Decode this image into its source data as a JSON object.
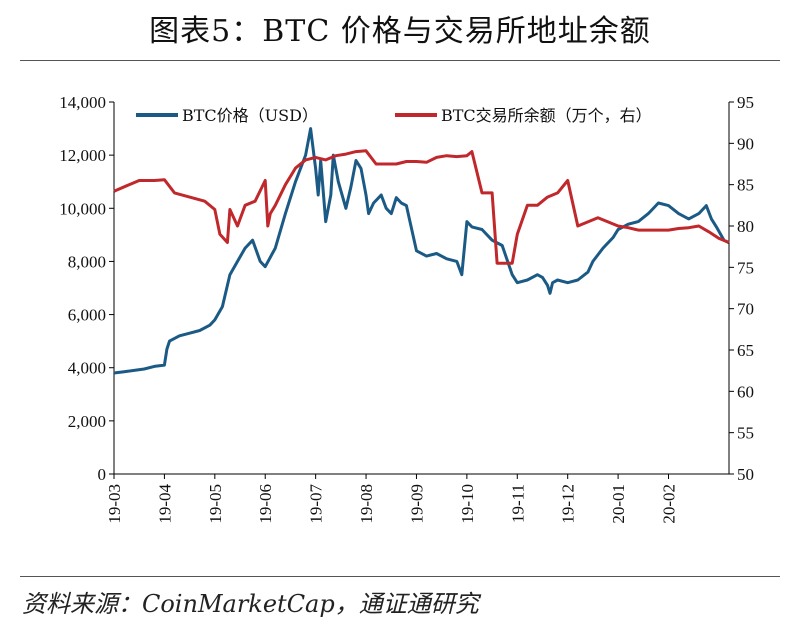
{
  "title": "图表5：BTC 价格与交易所地址余额",
  "source": "资料来源：CoinMarketCap，通证通研究",
  "colors": {
    "btc_price": "#1c5a86",
    "exchange_balance": "#c0282b",
    "axis": "#000000"
  },
  "chart_data": {
    "type": "line",
    "title": "图表5：BTC 价格与交易所地址余额",
    "x_categories": [
      "19-03",
      "19-04",
      "19-05",
      "19-06",
      "19-07",
      "19-08",
      "19-09",
      "19-10",
      "19-11",
      "19-12",
      "20-01",
      "20-02"
    ],
    "x_range": [
      0,
      12.2
    ],
    "y_left": {
      "min": 0,
      "max": 14000,
      "ticks": [
        0,
        2000,
        4000,
        6000,
        8000,
        10000,
        12000,
        14000
      ],
      "tick_labels": [
        "0",
        "2,000",
        "4,000",
        "6,000",
        "8,000",
        "10,000",
        "12,000",
        "14,000"
      ]
    },
    "y_right": {
      "min": 50,
      "max": 95,
      "ticks": [
        50,
        55,
        60,
        65,
        70,
        75,
        80,
        85,
        90,
        95
      ],
      "tick_labels": [
        "50",
        "55",
        "60",
        "65",
        "70",
        "75",
        "80",
        "85",
        "90",
        "95"
      ]
    },
    "legend_position": "top",
    "series": [
      {
        "name": "BTC价格（USD）",
        "axis": "left",
        "x": [
          0,
          0.2,
          0.4,
          0.6,
          0.8,
          1.0,
          1.05,
          1.1,
          1.3,
          1.5,
          1.7,
          1.9,
          2.0,
          2.15,
          2.3,
          2.45,
          2.6,
          2.75,
          2.9,
          3.0,
          3.2,
          3.4,
          3.6,
          3.8,
          3.9,
          4.0,
          4.05,
          4.1,
          4.2,
          4.3,
          4.35,
          4.45,
          4.6,
          4.7,
          4.8,
          4.9,
          5.0,
          5.05,
          5.15,
          5.3,
          5.4,
          5.5,
          5.6,
          5.7,
          5.8,
          6.0,
          6.2,
          6.4,
          6.6,
          6.8,
          6.9,
          7.0,
          7.1,
          7.3,
          7.5,
          7.7,
          7.9,
          8.0,
          8.2,
          8.4,
          8.5,
          8.6,
          8.65,
          8.7,
          8.8,
          9.0,
          9.2,
          9.4,
          9.5,
          9.7,
          9.9,
          10.0,
          10.1,
          10.2,
          10.4,
          10.6,
          10.8,
          11.0,
          11.2,
          11.4,
          11.6,
          11.75,
          11.85,
          11.95,
          12.1,
          12.2
        ],
        "values": [
          3800,
          3850,
          3900,
          3950,
          4050,
          4100,
          4700,
          5000,
          5200,
          5300,
          5400,
          5600,
          5800,
          6300,
          7500,
          8000,
          8500,
          8800,
          8000,
          7800,
          8500,
          9800,
          11000,
          12000,
          13000,
          11500,
          10500,
          11800,
          9500,
          10500,
          12000,
          11000,
          10000,
          10800,
          11800,
          11500,
          10500,
          9800,
          10200,
          10500,
          10000,
          9800,
          10400,
          10200,
          10100,
          8400,
          8200,
          8300,
          8100,
          8000,
          7500,
          9500,
          9300,
          9200,
          8800,
          8600,
          7500,
          7200,
          7300,
          7500,
          7400,
          7100,
          6800,
          7200,
          7300,
          7200,
          7300,
          7600,
          8000,
          8500,
          8900,
          9200,
          9300,
          9400,
          9500,
          9800,
          10200,
          10100,
          9800,
          9600,
          9800,
          10100,
          9600,
          9300,
          8800,
          8700
        ]
      },
      {
        "name": "BTC交易所余额（万个，右）",
        "axis": "right",
        "x": [
          0,
          0.3,
          0.5,
          0.8,
          1.0,
          1.2,
          1.5,
          1.8,
          2.0,
          2.1,
          2.25,
          2.3,
          2.45,
          2.6,
          2.8,
          3.0,
          3.05,
          3.1,
          3.2,
          3.4,
          3.6,
          3.8,
          4.0,
          4.2,
          4.4,
          4.6,
          4.8,
          5.0,
          5.2,
          5.4,
          5.6,
          5.8,
          6.0,
          6.2,
          6.4,
          6.6,
          6.8,
          7.0,
          7.1,
          7.3,
          7.5,
          7.6,
          7.9,
          8.0,
          8.2,
          8.4,
          8.6,
          8.8,
          9.0,
          9.2,
          9.4,
          9.6,
          9.8,
          10.0,
          10.2,
          10.4,
          10.6,
          10.8,
          11.0,
          11.2,
          11.4,
          11.6,
          11.8,
          12.0,
          12.2
        ],
        "values": [
          84.2,
          85,
          85.5,
          85.5,
          85.6,
          84,
          83.5,
          83,
          82,
          79,
          78,
          82,
          80,
          82.5,
          83,
          85.5,
          80,
          81.5,
          82.5,
          85,
          87,
          88,
          88.3,
          88,
          88.5,
          88.7,
          89,
          89.1,
          87.5,
          87.5,
          87.5,
          87.8,
          87.8,
          87.7,
          88.3,
          88.5,
          88.4,
          88.5,
          89,
          84,
          84,
          75.5,
          75.5,
          79,
          82.5,
          82.5,
          83.5,
          84,
          85.5,
          80,
          80.5,
          81,
          80.5,
          80,
          79.8,
          79.5,
          79.5,
          79.5,
          79.5,
          79.7,
          79.8,
          80,
          79.3,
          78.5,
          78
        ]
      }
    ]
  }
}
